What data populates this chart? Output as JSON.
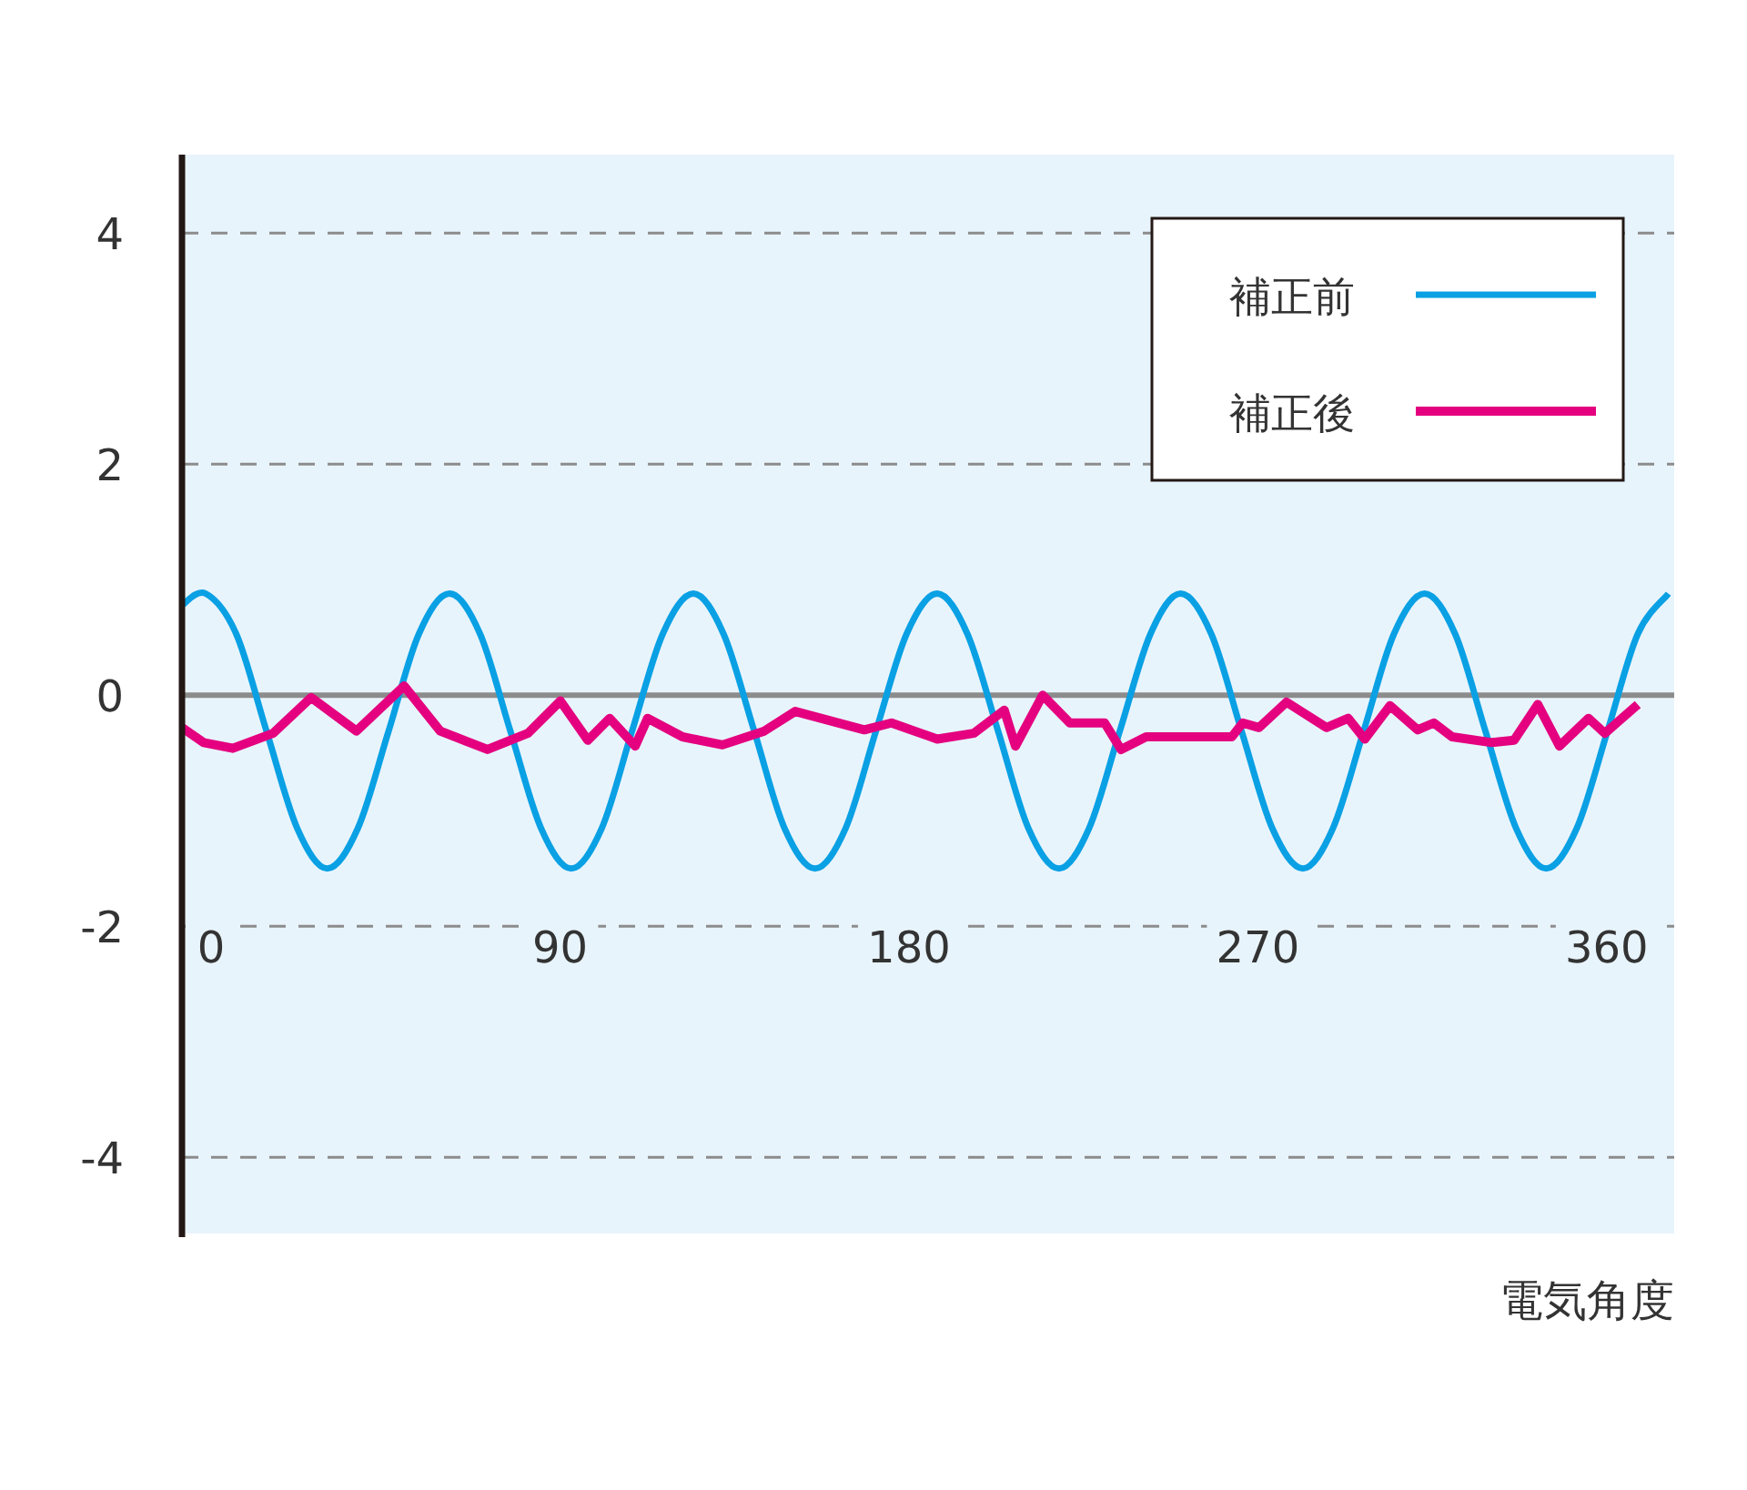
{
  "chart_data": {
    "type": "line",
    "xlabel": "電気角度",
    "xlim": [
      -7.5,
      377.4
    ],
    "ylim": [
      -4.66,
      4.68
    ],
    "xticks": [
      0,
      90,
      180,
      270,
      360
    ],
    "yticks": [
      -4,
      -2,
      0,
      2,
      4
    ],
    "grid": "y",
    "legend": "top right",
    "marker": "none",
    "line_style": "solid",
    "ref_lines": [
      {
        "axis": "y",
        "value": 0,
        "color": "#8c8c8c"
      }
    ],
    "series": [
      {
        "name": "補正前",
        "color": "#0aa0e4",
        "x": [
          -7.5,
          -1.4,
          6.5,
          14.3,
          22.2,
          30.0,
          37.9,
          45.8,
          53.6,
          61.5,
          69.4,
          77.2,
          85.1,
          92.9,
          100.8,
          108.6,
          116.5,
          124.4,
          132.2,
          140.1,
          147.9,
          155.8,
          163.7,
          171.5,
          179.4,
          187.3,
          195.1,
          203.0,
          210.8,
          218.7,
          226.5,
          234.4,
          242.3,
          250.1,
          258.0,
          265.8,
          273.7,
          281.6,
          289.4,
          297.3,
          305.1,
          313.0,
          320.9,
          328.7,
          336.6,
          344.4,
          352.3,
          360.2,
          368.0,
          375.9
        ],
        "values": [
          0.78,
          0.88,
          0.53,
          -0.31,
          -1.15,
          -1.5,
          -1.15,
          -0.31,
          0.53,
          0.88,
          0.53,
          -0.31,
          -1.15,
          -1.5,
          -1.15,
          -0.31,
          0.53,
          0.88,
          0.53,
          -0.31,
          -1.15,
          -1.5,
          -1.15,
          -0.31,
          0.53,
          0.88,
          0.53,
          -0.31,
          -1.15,
          -1.5,
          -1.15,
          -0.31,
          0.53,
          0.88,
          0.53,
          -0.31,
          -1.15,
          -1.5,
          -1.15,
          -0.31,
          0.53,
          0.88,
          0.53,
          -0.31,
          -1.15,
          -1.5,
          -1.15,
          -0.31,
          0.53,
          0.88
        ]
      },
      {
        "name": "補正後",
        "color": "#e4007f",
        "x": [
          -7.5,
          -1.9,
          5.6,
          16.0,
          25.8,
          37.5,
          49.8,
          59.1,
          71.3,
          81.7,
          90.1,
          97.2,
          102.8,
          109.4,
          112.6,
          121.6,
          131.9,
          142.7,
          150.7,
          168.5,
          175.5,
          187.3,
          196.7,
          204.6,
          207.5,
          214.5,
          221.5,
          230.5,
          234.7,
          241.2,
          263.3,
          266.1,
          270.3,
          277.4,
          287.7,
          293.3,
          297.6,
          304.1,
          311.2,
          315.4,
          320.1,
          330.4,
          336.1,
          342.2,
          347.8,
          355.3,
          359.5,
          368.0
        ],
        "values": [
          -0.28,
          -0.41,
          -0.46,
          -0.33,
          -0.02,
          -0.31,
          0.08,
          -0.31,
          -0.47,
          -0.33,
          -0.05,
          -0.39,
          -0.2,
          -0.44,
          -0.2,
          -0.36,
          -0.43,
          -0.31,
          -0.14,
          -0.3,
          -0.24,
          -0.38,
          -0.33,
          -0.13,
          -0.44,
          0.0,
          -0.24,
          -0.24,
          -0.47,
          -0.36,
          -0.36,
          -0.24,
          -0.28,
          -0.06,
          -0.28,
          -0.2,
          -0.38,
          -0.09,
          -0.3,
          -0.24,
          -0.36,
          -0.41,
          -0.39,
          -0.08,
          -0.44,
          -0.2,
          -0.33,
          -0.08
        ]
      }
    ]
  }
}
